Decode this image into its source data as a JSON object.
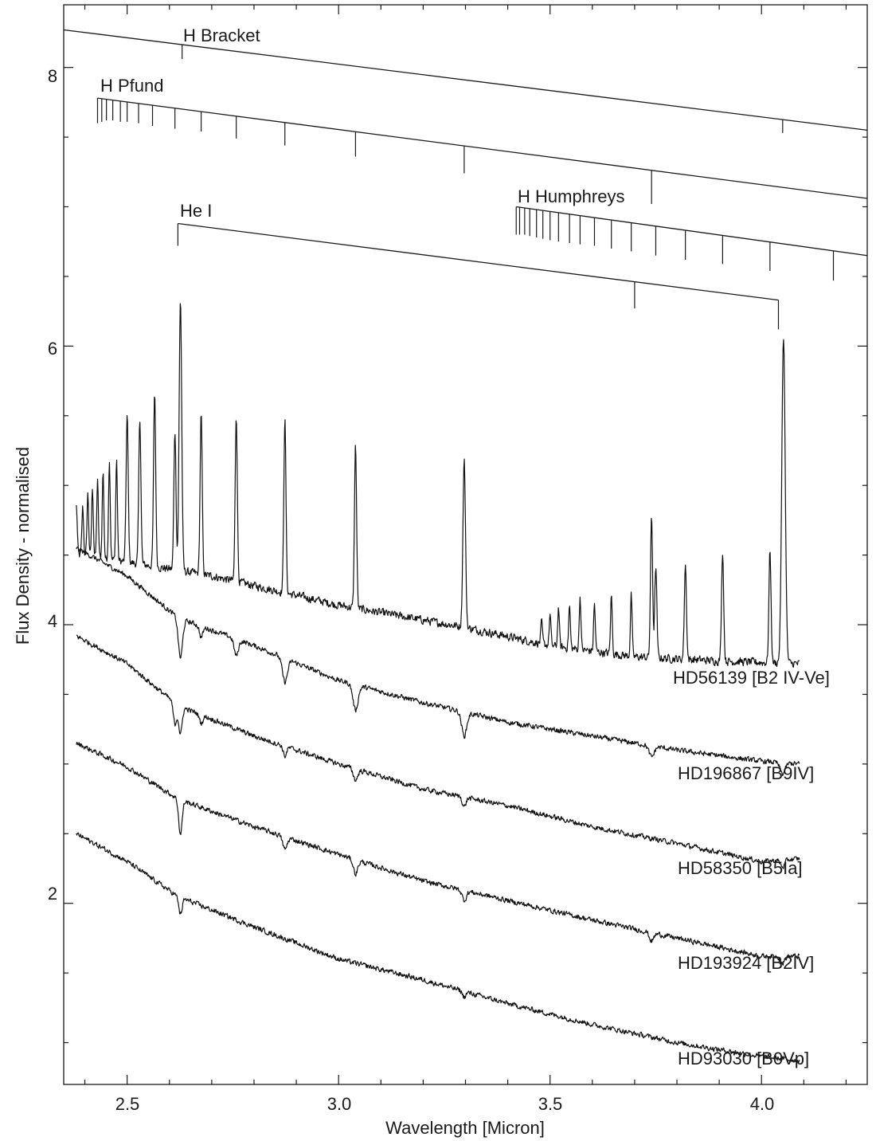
{
  "chart_data": {
    "type": "line",
    "xlabel": "Wavelength [Micron]",
    "ylabel": "Flux Density - normalised",
    "xlim": [
      2.35,
      4.25
    ],
    "ylim": [
      0.7,
      8.45
    ],
    "x_ticks": [
      2.5,
      3.0,
      3.5,
      4.0
    ],
    "x_tick_labels": [
      "2.5",
      "3.0",
      "3.5",
      "4.0"
    ],
    "y_ticks": [
      2,
      4,
      6,
      8
    ],
    "y_tick_labels": [
      "2",
      "4",
      "6",
      "8"
    ],
    "x_minor_step": 0.1,
    "y_minor_step": 0.5,
    "grid": false,
    "line_markers": [
      {
        "name": "H Bracket",
        "start": [
          2.35,
          8.27
        ],
        "end": [
          4.25,
          7.55
        ],
        "ticks": [
          [
            2.63,
            8.06
          ],
          [
            4.05,
            7.53
          ]
        ]
      },
      {
        "name": "H Pfund",
        "start": [
          2.43,
          7.78
        ],
        "end": [
          4.25,
          7.06
        ],
        "ticks": [
          [
            2.43,
            7.6
          ],
          [
            2.44,
            7.61
          ],
          [
            2.451,
            7.62
          ],
          [
            2.466,
            7.62
          ],
          [
            2.484,
            7.61
          ],
          [
            2.5,
            7.61
          ],
          [
            2.527,
            7.6
          ],
          [
            2.56,
            7.58
          ],
          [
            2.613,
            7.56
          ],
          [
            2.675,
            7.54
          ],
          [
            2.758,
            7.49
          ],
          [
            2.873,
            7.44
          ],
          [
            3.04,
            7.36
          ],
          [
            3.297,
            7.24
          ],
          [
            3.74,
            7.02
          ]
        ]
      },
      {
        "name": "He I",
        "start": [
          2.62,
          6.88
        ],
        "end": [
          4.04,
          6.33
        ],
        "ticks": [
          [
            2.62,
            6.72
          ],
          [
            3.7,
            6.27
          ],
          [
            4.04,
            6.12
          ]
        ]
      },
      {
        "name": "H Humphreys",
        "start": [
          3.42,
          7.0
        ],
        "end": [
          4.25,
          6.65
        ],
        "ticks": [
          [
            3.42,
            6.8
          ],
          [
            3.428,
            6.8
          ],
          [
            3.44,
            6.8
          ],
          [
            3.452,
            6.79
          ],
          [
            3.468,
            6.78
          ],
          [
            3.483,
            6.77
          ],
          [
            3.5,
            6.76
          ],
          [
            3.52,
            6.75
          ],
          [
            3.546,
            6.74
          ],
          [
            3.571,
            6.73
          ],
          [
            3.605,
            6.72
          ],
          [
            3.645,
            6.7
          ],
          [
            3.692,
            6.68
          ],
          [
            3.75,
            6.65
          ],
          [
            3.82,
            6.62
          ],
          [
            3.908,
            6.59
          ],
          [
            4.02,
            6.54
          ],
          [
            4.17,
            6.47
          ]
        ]
      }
    ],
    "series": [
      {
        "name": "HD56139 [B2 IV-Ve]",
        "x_range": [
          2.38,
          4.09
        ],
        "baseline": [
          [
            2.38,
            4.5
          ],
          [
            2.5,
            4.45
          ],
          [
            2.7,
            4.35
          ],
          [
            3.0,
            4.14
          ],
          [
            3.3,
            3.98
          ],
          [
            3.5,
            3.85
          ],
          [
            3.7,
            3.77
          ],
          [
            3.9,
            3.74
          ],
          [
            4.09,
            3.72
          ]
        ],
        "noise": 0.04,
        "features": [
          {
            "x": 2.38,
            "depth": 0.35,
            "width": 0.002
          },
          {
            "x": 2.395,
            "depth": 0.35,
            "width": 0.002
          },
          {
            "x": 2.407,
            "depth": 0.45,
            "width": 0.002
          },
          {
            "x": 2.418,
            "depth": 0.5,
            "width": 0.002
          },
          {
            "x": 2.43,
            "depth": 0.55,
            "width": 0.002
          },
          {
            "x": 2.443,
            "depth": 0.62,
            "width": 0.002
          },
          {
            "x": 2.458,
            "depth": 0.72,
            "width": 0.002
          },
          {
            "x": 2.475,
            "depth": 0.72,
            "width": 0.002
          },
          {
            "x": 2.5,
            "depth": 1.05,
            "width": 0.0025
          },
          {
            "x": 2.53,
            "depth": 1.05,
            "width": 0.0025
          },
          {
            "x": 2.565,
            "depth": 1.25,
            "width": 0.0025
          },
          {
            "x": 2.613,
            "depth": 1.0,
            "width": 0.0025
          },
          {
            "x": 2.626,
            "depth": 1.95,
            "width": 0.003
          },
          {
            "x": 2.675,
            "depth": 1.15,
            "width": 0.0025
          },
          {
            "x": 2.758,
            "depth": 1.2,
            "width": 0.0025
          },
          {
            "x": 2.873,
            "depth": 1.25,
            "width": 0.0025
          },
          {
            "x": 3.04,
            "depth": 1.17,
            "width": 0.0025
          },
          {
            "x": 3.297,
            "depth": 1.2,
            "width": 0.003
          },
          {
            "x": 3.48,
            "depth": 0.15,
            "width": 0.002
          },
          {
            "x": 3.5,
            "depth": 0.22,
            "width": 0.002
          },
          {
            "x": 3.52,
            "depth": 0.28,
            "width": 0.002
          },
          {
            "x": 3.546,
            "depth": 0.3,
            "width": 0.002
          },
          {
            "x": 3.571,
            "depth": 0.38,
            "width": 0.002
          },
          {
            "x": 3.605,
            "depth": 0.34,
            "width": 0.002
          },
          {
            "x": 3.645,
            "depth": 0.42,
            "width": 0.002
          },
          {
            "x": 3.692,
            "depth": 0.44,
            "width": 0.002
          },
          {
            "x": 3.74,
            "depth": 1.0,
            "width": 0.0025
          },
          {
            "x": 3.75,
            "depth": 0.65,
            "width": 0.0025
          },
          {
            "x": 3.82,
            "depth": 0.68,
            "width": 0.0025
          },
          {
            "x": 3.908,
            "depth": 0.79,
            "width": 0.0025
          },
          {
            "x": 4.02,
            "depth": 0.8,
            "width": 0.0025
          },
          {
            "x": 4.052,
            "depth": 2.35,
            "width": 0.004
          }
        ]
      },
      {
        "name": "HD196867 [B9IV]",
        "x_range": [
          2.38,
          4.09
        ],
        "baseline": [
          [
            2.38,
            4.55
          ],
          [
            2.5,
            4.35
          ],
          [
            2.62,
            4.05
          ],
          [
            2.8,
            3.85
          ],
          [
            3.0,
            3.6
          ],
          [
            3.2,
            3.44
          ],
          [
            3.4,
            3.3
          ],
          [
            3.6,
            3.2
          ],
          [
            3.8,
            3.1
          ],
          [
            4.0,
            3.02
          ],
          [
            4.09,
            3.0
          ]
        ],
        "noise": 0.025,
        "features": [
          {
            "x": 2.626,
            "depth": -0.28,
            "width": 0.005
          },
          {
            "x": 2.675,
            "depth": -0.08,
            "width": 0.004
          },
          {
            "x": 2.758,
            "depth": -0.12,
            "width": 0.005
          },
          {
            "x": 2.873,
            "depth": -0.17,
            "width": 0.006
          },
          {
            "x": 3.04,
            "depth": -0.18,
            "width": 0.006
          },
          {
            "x": 3.297,
            "depth": -0.17,
            "width": 0.006
          },
          {
            "x": 3.74,
            "depth": -0.08,
            "width": 0.006
          },
          {
            "x": 4.05,
            "depth": -0.08,
            "width": 0.006
          }
        ]
      },
      {
        "name": "HD58350 [B5Ia]",
        "x_range": [
          2.38,
          4.09
        ],
        "baseline": [
          [
            2.38,
            3.92
          ],
          [
            2.5,
            3.72
          ],
          [
            2.62,
            3.42
          ],
          [
            2.8,
            3.2
          ],
          [
            3.0,
            3.0
          ],
          [
            3.2,
            2.82
          ],
          [
            3.4,
            2.7
          ],
          [
            3.6,
            2.55
          ],
          [
            3.8,
            2.43
          ],
          [
            4.0,
            2.3
          ],
          [
            4.09,
            2.32
          ]
        ],
        "noise": 0.025,
        "features": [
          {
            "x": 2.613,
            "depth": -0.15,
            "width": 0.004
          },
          {
            "x": 2.626,
            "depth": -0.2,
            "width": 0.004
          },
          {
            "x": 2.675,
            "depth": -0.06,
            "width": 0.004
          },
          {
            "x": 2.873,
            "depth": -0.07,
            "width": 0.004
          },
          {
            "x": 3.04,
            "depth": -0.08,
            "width": 0.005
          },
          {
            "x": 3.297,
            "depth": -0.07,
            "width": 0.004
          },
          {
            "x": 4.05,
            "depth": -0.05,
            "width": 0.005
          }
        ]
      },
      {
        "name": "HD193924 [B2IV]",
        "x_range": [
          2.38,
          4.09
        ],
        "baseline": [
          [
            2.38,
            3.15
          ],
          [
            2.5,
            2.98
          ],
          [
            2.62,
            2.75
          ],
          [
            2.8,
            2.55
          ],
          [
            3.0,
            2.35
          ],
          [
            3.2,
            2.16
          ],
          [
            3.4,
            2.02
          ],
          [
            3.6,
            1.88
          ],
          [
            3.8,
            1.75
          ],
          [
            4.0,
            1.62
          ],
          [
            4.09,
            1.62
          ]
        ],
        "noise": 0.025,
        "features": [
          {
            "x": 2.626,
            "depth": -0.25,
            "width": 0.004
          },
          {
            "x": 2.873,
            "depth": -0.09,
            "width": 0.005
          },
          {
            "x": 3.04,
            "depth": -0.1,
            "width": 0.005
          },
          {
            "x": 3.297,
            "depth": -0.07,
            "width": 0.005
          },
          {
            "x": 3.74,
            "depth": -0.06,
            "width": 0.005
          },
          {
            "x": 4.05,
            "depth": -0.05,
            "width": 0.005
          }
        ]
      },
      {
        "name": "HD93030 [B0Vp]",
        "x_range": [
          2.38,
          4.09
        ],
        "baseline": [
          [
            2.38,
            2.5
          ],
          [
            2.5,
            2.3
          ],
          [
            2.62,
            2.05
          ],
          [
            2.8,
            1.83
          ],
          [
            3.0,
            1.6
          ],
          [
            3.2,
            1.45
          ],
          [
            3.4,
            1.28
          ],
          [
            3.6,
            1.13
          ],
          [
            3.8,
            1.0
          ],
          [
            4.0,
            0.9
          ],
          [
            4.09,
            0.87
          ]
        ],
        "noise": 0.025,
        "features": [
          {
            "x": 2.626,
            "depth": -0.12,
            "width": 0.004
          },
          {
            "x": 3.297,
            "depth": -0.04,
            "width": 0.004
          }
        ]
      }
    ]
  }
}
